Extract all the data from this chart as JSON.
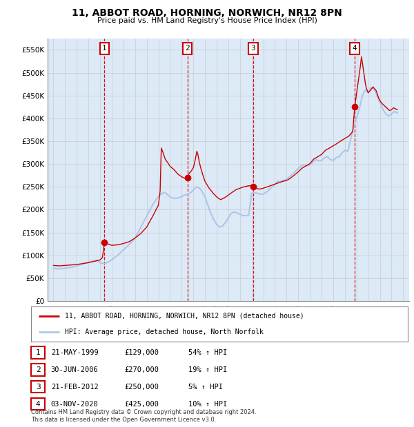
{
  "title": "11, ABBOT ROAD, HORNING, NORWICH, NR12 8PN",
  "subtitle": "Price paid vs. HM Land Registry's House Price Index (HPI)",
  "legend_line1": "11, ABBOT ROAD, HORNING, NORWICH, NR12 8PN (detached house)",
  "legend_line2": "HPI: Average price, detached house, North Norfolk",
  "footer1": "Contains HM Land Registry data © Crown copyright and database right 2024.",
  "footer2": "This data is licensed under the Open Government Licence v3.0.",
  "hpi_color": "#aec6e8",
  "price_color": "#cc0000",
  "bg_color": "#dce9f7",
  "grid_color": "#cccccc",
  "annotations": [
    {
      "num": 1,
      "date_str": "21-MAY-1999",
      "price": 129000,
      "pct": "54%",
      "dir": "↑",
      "x_year": 1999.38
    },
    {
      "num": 2,
      "date_str": "30-JUN-2006",
      "price": 270000,
      "pct": "19%",
      "dir": "↑",
      "x_year": 2006.5
    },
    {
      "num": 3,
      "date_str": "21-FEB-2012",
      "price": 250000,
      "pct": "5%",
      "dir": "↑",
      "x_year": 2012.13
    },
    {
      "num": 4,
      "date_str": "03-NOV-2020",
      "price": 425000,
      "pct": "10%",
      "dir": "↑",
      "x_year": 2020.84
    }
  ],
  "ylim": [
    0,
    575000
  ],
  "xlim_start": 1994.5,
  "xlim_end": 2025.5,
  "yticks": [
    0,
    50000,
    100000,
    150000,
    200000,
    250000,
    300000,
    350000,
    400000,
    450000,
    500000,
    550000
  ],
  "ytick_labels": [
    "£0",
    "£50K",
    "£100K",
    "£150K",
    "£200K",
    "£250K",
    "£300K",
    "£350K",
    "£400K",
    "£450K",
    "£500K",
    "£550K"
  ],
  "xticks": [
    1995,
    1996,
    1997,
    1998,
    1999,
    2000,
    2001,
    2002,
    2003,
    2004,
    2005,
    2006,
    2007,
    2008,
    2009,
    2010,
    2011,
    2012,
    2013,
    2014,
    2015,
    2016,
    2017,
    2018,
    2019,
    2020,
    2021,
    2022,
    2023,
    2024,
    2025
  ],
  "hpi_data": [
    [
      1995.0,
      72000
    ],
    [
      1995.25,
      71000
    ],
    [
      1995.5,
      70500
    ],
    [
      1995.75,
      71000
    ],
    [
      1996.0,
      72000
    ],
    [
      1996.25,
      73000
    ],
    [
      1996.5,
      74000
    ],
    [
      1996.75,
      75000
    ],
    [
      1997.0,
      77000
    ],
    [
      1997.25,
      79000
    ],
    [
      1997.5,
      81000
    ],
    [
      1997.75,
      83000
    ],
    [
      1998.0,
      85000
    ],
    [
      1998.25,
      87000
    ],
    [
      1998.5,
      88000
    ],
    [
      1998.75,
      89000
    ],
    [
      1999.0,
      84000
    ],
    [
      1999.25,
      82000
    ],
    [
      1999.5,
      83000
    ],
    [
      1999.75,
      86000
    ],
    [
      2000.0,
      90000
    ],
    [
      2000.25,
      95000
    ],
    [
      2000.5,
      100000
    ],
    [
      2000.75,
      106000
    ],
    [
      2001.0,
      112000
    ],
    [
      2001.25,
      118000
    ],
    [
      2001.5,
      124000
    ],
    [
      2001.75,
      130000
    ],
    [
      2002.0,
      138000
    ],
    [
      2002.25,
      150000
    ],
    [
      2002.5,
      162000
    ],
    [
      2002.75,
      174000
    ],
    [
      2003.0,
      186000
    ],
    [
      2003.25,
      198000
    ],
    [
      2003.5,
      210000
    ],
    [
      2003.75,
      220000
    ],
    [
      2004.0,
      228000
    ],
    [
      2004.25,
      234000
    ],
    [
      2004.5,
      238000
    ],
    [
      2004.75,
      234000
    ],
    [
      2005.0,
      228000
    ],
    [
      2005.25,
      225000
    ],
    [
      2005.5,
      225000
    ],
    [
      2005.75,
      226000
    ],
    [
      2006.0,
      229000
    ],
    [
      2006.25,
      232000
    ],
    [
      2006.5,
      234000
    ],
    [
      2006.75,
      237000
    ],
    [
      2007.0,
      243000
    ],
    [
      2007.25,
      250000
    ],
    [
      2007.5,
      248000
    ],
    [
      2007.75,
      240000
    ],
    [
      2008.0,
      228000
    ],
    [
      2008.25,
      210000
    ],
    [
      2008.5,
      192000
    ],
    [
      2008.75,
      178000
    ],
    [
      2009.0,
      168000
    ],
    [
      2009.25,
      162000
    ],
    [
      2009.5,
      164000
    ],
    [
      2009.75,
      172000
    ],
    [
      2010.0,
      182000
    ],
    [
      2010.25,
      192000
    ],
    [
      2010.5,
      195000
    ],
    [
      2010.75,
      193000
    ],
    [
      2011.0,
      190000
    ],
    [
      2011.25,
      187000
    ],
    [
      2011.5,
      187000
    ],
    [
      2011.75,
      188000
    ],
    [
      2012.0,
      236000
    ],
    [
      2012.25,
      237000
    ],
    [
      2012.5,
      236000
    ],
    [
      2012.75,
      234000
    ],
    [
      2013.0,
      234000
    ],
    [
      2013.25,
      238000
    ],
    [
      2013.5,
      244000
    ],
    [
      2013.75,
      250000
    ],
    [
      2014.0,
      256000
    ],
    [
      2014.25,
      262000
    ],
    [
      2014.5,
      262000
    ],
    [
      2014.75,
      264000
    ],
    [
      2015.0,
      267000
    ],
    [
      2015.25,
      272000
    ],
    [
      2015.5,
      278000
    ],
    [
      2015.75,
      284000
    ],
    [
      2016.0,
      290000
    ],
    [
      2016.25,
      296000
    ],
    [
      2016.5,
      298000
    ],
    [
      2016.75,
      296000
    ],
    [
      2017.0,
      298000
    ],
    [
      2017.25,
      304000
    ],
    [
      2017.5,
      310000
    ],
    [
      2017.75,
      307000
    ],
    [
      2018.0,
      308000
    ],
    [
      2018.25,
      314000
    ],
    [
      2018.5,
      316000
    ],
    [
      2018.75,
      310000
    ],
    [
      2019.0,
      308000
    ],
    [
      2019.25,
      314000
    ],
    [
      2019.5,
      316000
    ],
    [
      2019.75,
      324000
    ],
    [
      2020.0,
      330000
    ],
    [
      2020.25,
      328000
    ],
    [
      2020.5,
      355000
    ],
    [
      2020.75,
      382000
    ],
    [
      2021.0,
      400000
    ],
    [
      2021.25,
      422000
    ],
    [
      2021.5,
      450000
    ],
    [
      2021.75,
      462000
    ],
    [
      2022.0,
      456000
    ],
    [
      2022.25,
      468000
    ],
    [
      2022.5,
      465000
    ],
    [
      2022.75,
      450000
    ],
    [
      2023.0,
      435000
    ],
    [
      2023.25,
      420000
    ],
    [
      2023.5,
      410000
    ],
    [
      2023.75,
      405000
    ],
    [
      2024.0,
      410000
    ],
    [
      2024.25,
      415000
    ],
    [
      2024.5,
      412000
    ]
  ],
  "price_data": [
    [
      1995.0,
      78000
    ],
    [
      1995.5,
      77000
    ],
    [
      1996.0,
      78000
    ],
    [
      1996.5,
      79000
    ],
    [
      1997.0,
      80000
    ],
    [
      1997.5,
      82000
    ],
    [
      1998.0,
      84000
    ],
    [
      1998.5,
      87000
    ],
    [
      1999.0,
      90000
    ],
    [
      1999.2,
      95000
    ],
    [
      1999.38,
      129000
    ],
    [
      1999.5,
      127000
    ],
    [
      1999.75,
      124000
    ],
    [
      2000.0,
      122000
    ],
    [
      2000.5,
      123000
    ],
    [
      2001.0,
      126000
    ],
    [
      2001.5,
      130000
    ],
    [
      2002.0,
      138000
    ],
    [
      2002.5,
      148000
    ],
    [
      2003.0,
      162000
    ],
    [
      2003.5,
      185000
    ],
    [
      2004.0,
      210000
    ],
    [
      2004.15,
      240000
    ],
    [
      2004.25,
      335000
    ],
    [
      2004.4,
      325000
    ],
    [
      2004.6,
      310000
    ],
    [
      2004.83,
      302000
    ],
    [
      2005.0,
      295000
    ],
    [
      2005.33,
      288000
    ],
    [
      2005.67,
      278000
    ],
    [
      2006.0,
      272000
    ],
    [
      2006.33,
      268000
    ],
    [
      2006.5,
      270000
    ],
    [
      2006.6,
      278000
    ],
    [
      2006.83,
      285000
    ],
    [
      2007.0,
      292000
    ],
    [
      2007.17,
      310000
    ],
    [
      2007.3,
      328000
    ],
    [
      2007.4,
      320000
    ],
    [
      2007.5,
      305000
    ],
    [
      2007.67,
      288000
    ],
    [
      2007.83,
      275000
    ],
    [
      2008.0,
      262000
    ],
    [
      2008.33,
      248000
    ],
    [
      2008.67,
      237000
    ],
    [
      2009.0,
      228000
    ],
    [
      2009.33,
      222000
    ],
    [
      2009.67,
      226000
    ],
    [
      2010.0,
      232000
    ],
    [
      2010.33,
      238000
    ],
    [
      2010.67,
      244000
    ],
    [
      2011.0,
      247000
    ],
    [
      2011.33,
      250000
    ],
    [
      2011.67,
      252000
    ],
    [
      2012.0,
      253000
    ],
    [
      2012.13,
      250000
    ],
    [
      2012.33,
      247000
    ],
    [
      2012.67,
      245000
    ],
    [
      2013.0,
      247000
    ],
    [
      2013.33,
      250000
    ],
    [
      2013.67,
      253000
    ],
    [
      2014.0,
      256000
    ],
    [
      2014.33,
      259000
    ],
    [
      2014.67,
      262000
    ],
    [
      2015.0,
      264000
    ],
    [
      2015.33,
      269000
    ],
    [
      2015.67,
      276000
    ],
    [
      2016.0,
      283000
    ],
    [
      2016.33,
      291000
    ],
    [
      2016.67,
      296000
    ],
    [
      2017.0,
      301000
    ],
    [
      2017.33,
      311000
    ],
    [
      2017.67,
      316000
    ],
    [
      2018.0,
      321000
    ],
    [
      2018.33,
      330000
    ],
    [
      2018.67,
      335000
    ],
    [
      2019.0,
      340000
    ],
    [
      2019.33,
      345000
    ],
    [
      2019.67,
      351000
    ],
    [
      2020.0,
      356000
    ],
    [
      2020.33,
      361000
    ],
    [
      2020.67,
      371000
    ],
    [
      2020.84,
      425000
    ],
    [
      2021.0,
      455000
    ],
    [
      2021.17,
      485000
    ],
    [
      2021.33,
      515000
    ],
    [
      2021.42,
      535000
    ],
    [
      2021.5,
      522000
    ],
    [
      2021.58,
      507000
    ],
    [
      2021.67,
      492000
    ],
    [
      2021.75,
      477000
    ],
    [
      2021.83,
      467000
    ],
    [
      2021.92,
      461000
    ],
    [
      2022.0,
      456000
    ],
    [
      2022.17,
      461000
    ],
    [
      2022.33,
      466000
    ],
    [
      2022.42,
      469000
    ],
    [
      2022.5,
      466000
    ],
    [
      2022.67,
      461000
    ],
    [
      2022.75,
      456000
    ],
    [
      2022.83,
      449000
    ],
    [
      2022.92,
      443000
    ],
    [
      2023.0,
      439000
    ],
    [
      2023.17,
      433000
    ],
    [
      2023.33,
      429000
    ],
    [
      2023.5,
      425000
    ],
    [
      2023.67,
      421000
    ],
    [
      2023.75,
      419000
    ],
    [
      2023.83,
      417000
    ],
    [
      2024.0,
      419000
    ],
    [
      2024.17,
      423000
    ],
    [
      2024.33,
      421000
    ],
    [
      2024.5,
      419000
    ]
  ]
}
